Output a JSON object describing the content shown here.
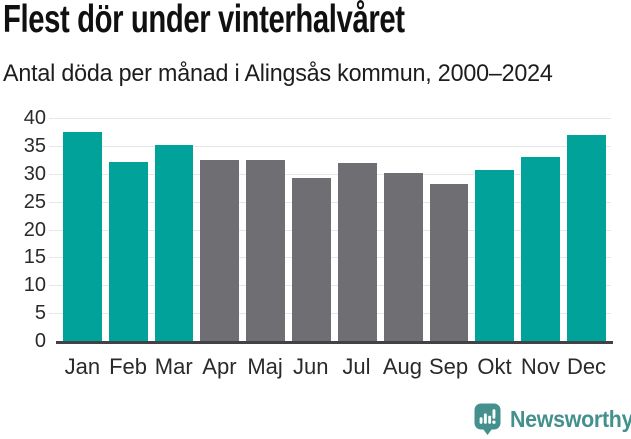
{
  "header": {
    "title": "Flest dör under vinterhalvåret",
    "subtitle": "Antal döda per månad i Alingsås kommun, 2000–2024"
  },
  "chart_data": {
    "type": "bar",
    "title": "Flest dör under vinterhalvåret",
    "subtitle": "Antal döda per månad i Alingsås kommun, 2000–2024",
    "categories": [
      "Jan",
      "Feb",
      "Mar",
      "Apr",
      "Maj",
      "Jun",
      "Jul",
      "Aug",
      "Sep",
      "Okt",
      "Nov",
      "Dec"
    ],
    "values": [
      37.5,
      32.1,
      35.1,
      32.4,
      32.4,
      29.3,
      31.9,
      30.1,
      28.2,
      30.7,
      33.0,
      37.0
    ],
    "bar_color_roles": [
      "winter",
      "winter",
      "winter",
      "summer",
      "summer",
      "summer",
      "summer",
      "summer",
      "summer",
      "winter",
      "winter",
      "winter"
    ],
    "xlabel": "",
    "ylabel": "",
    "ylim": [
      0,
      40
    ],
    "yticks": [
      0,
      5,
      10,
      15,
      20,
      25,
      30,
      35,
      40
    ],
    "grid": true,
    "legend": false,
    "highlight_meaning": "teal = winter half-year months (Okt–Mar), gray = summer half-year (Apr–Sep)"
  },
  "colors": {
    "winter_bar": "#00a29a",
    "summer_bar": "#6e6e73",
    "gridline": "#e7e7e7",
    "axis_line": "#414147",
    "logo_teal": "#43908c",
    "title_text": "#101010",
    "tick_text": "#2a2a2e"
  },
  "footer": {
    "brand": "Newsworthy",
    "logo_icon": "newsworthy-bar-chart-speech-bubble-icon"
  }
}
